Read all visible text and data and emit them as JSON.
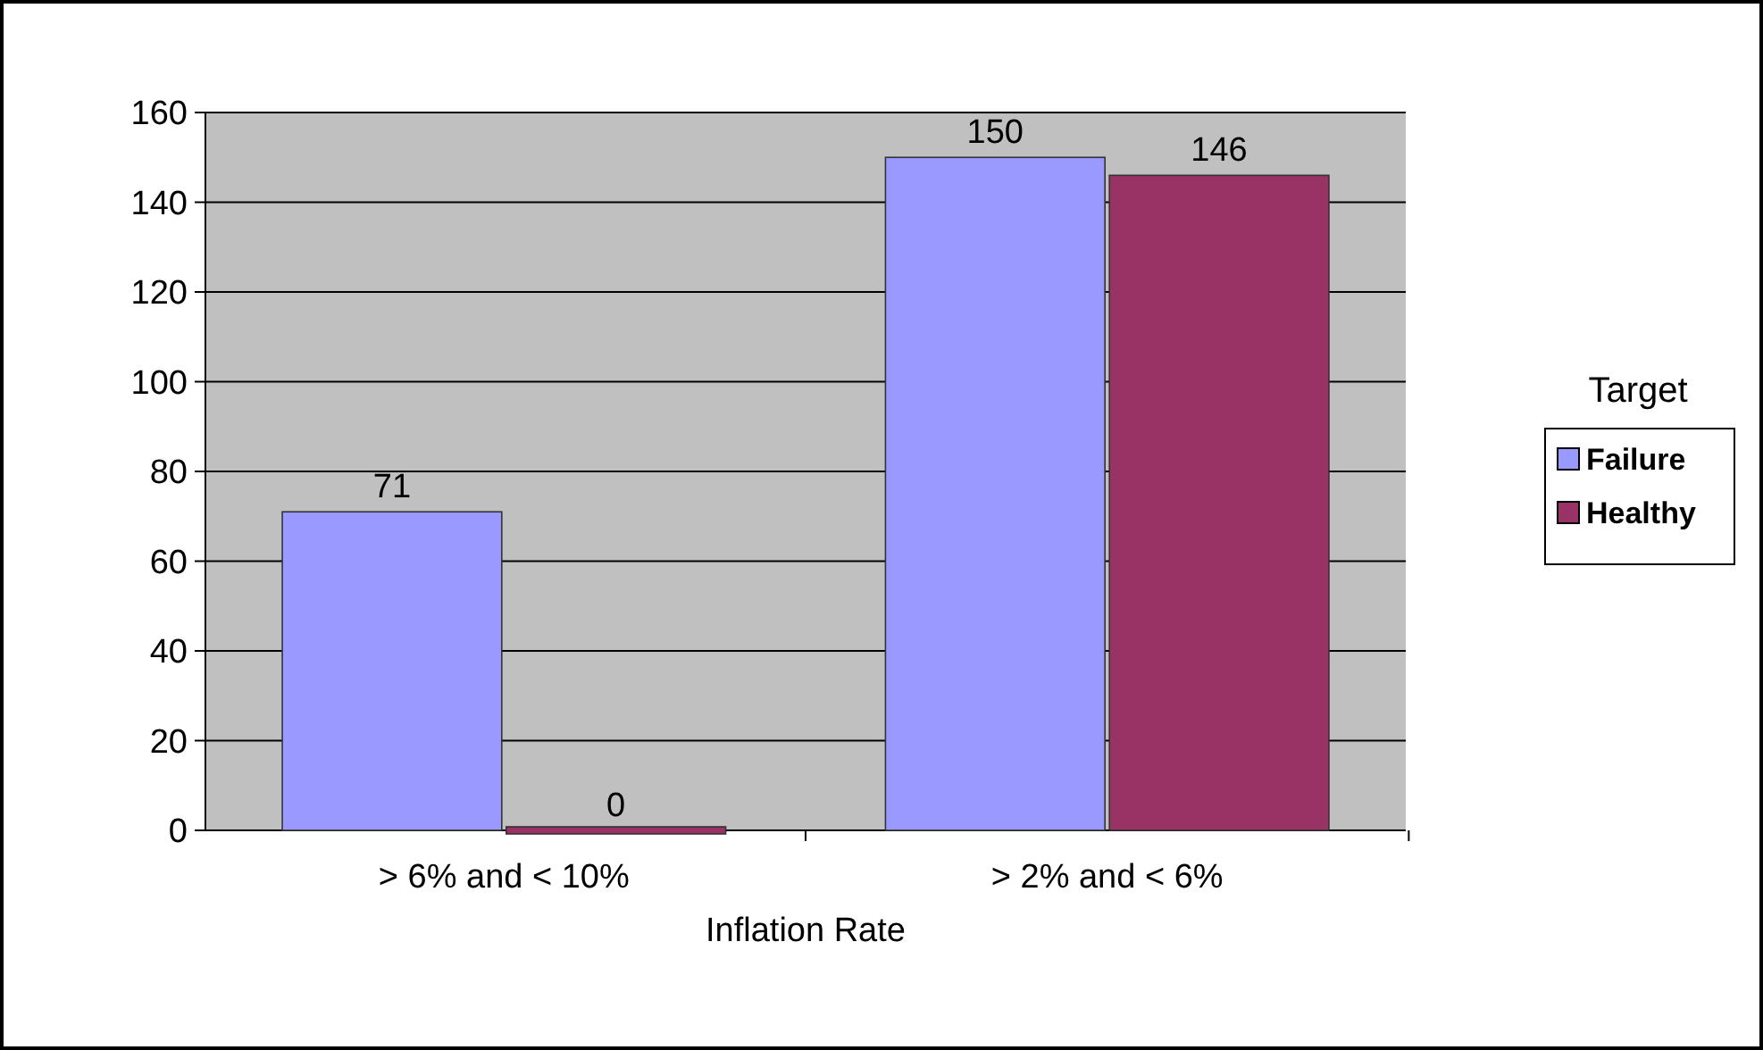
{
  "chart_data": {
    "type": "bar",
    "xlabel": "Inflation Rate",
    "legend_title": "Target",
    "categories": [
      "> 6% and < 10%",
      "> 2% and < 6%"
    ],
    "series": [
      {
        "name": "Failure",
        "color": "#9999ff",
        "values": [
          71,
          150
        ]
      },
      {
        "name": "Healthy",
        "color": "#993366",
        "values": [
          0,
          146
        ]
      }
    ],
    "ylim": [
      0,
      160
    ],
    "yticks": [
      0,
      20,
      40,
      60,
      80,
      100,
      120,
      140,
      160
    ],
    "grid": "y",
    "legend": "right",
    "data_labels": true
  }
}
